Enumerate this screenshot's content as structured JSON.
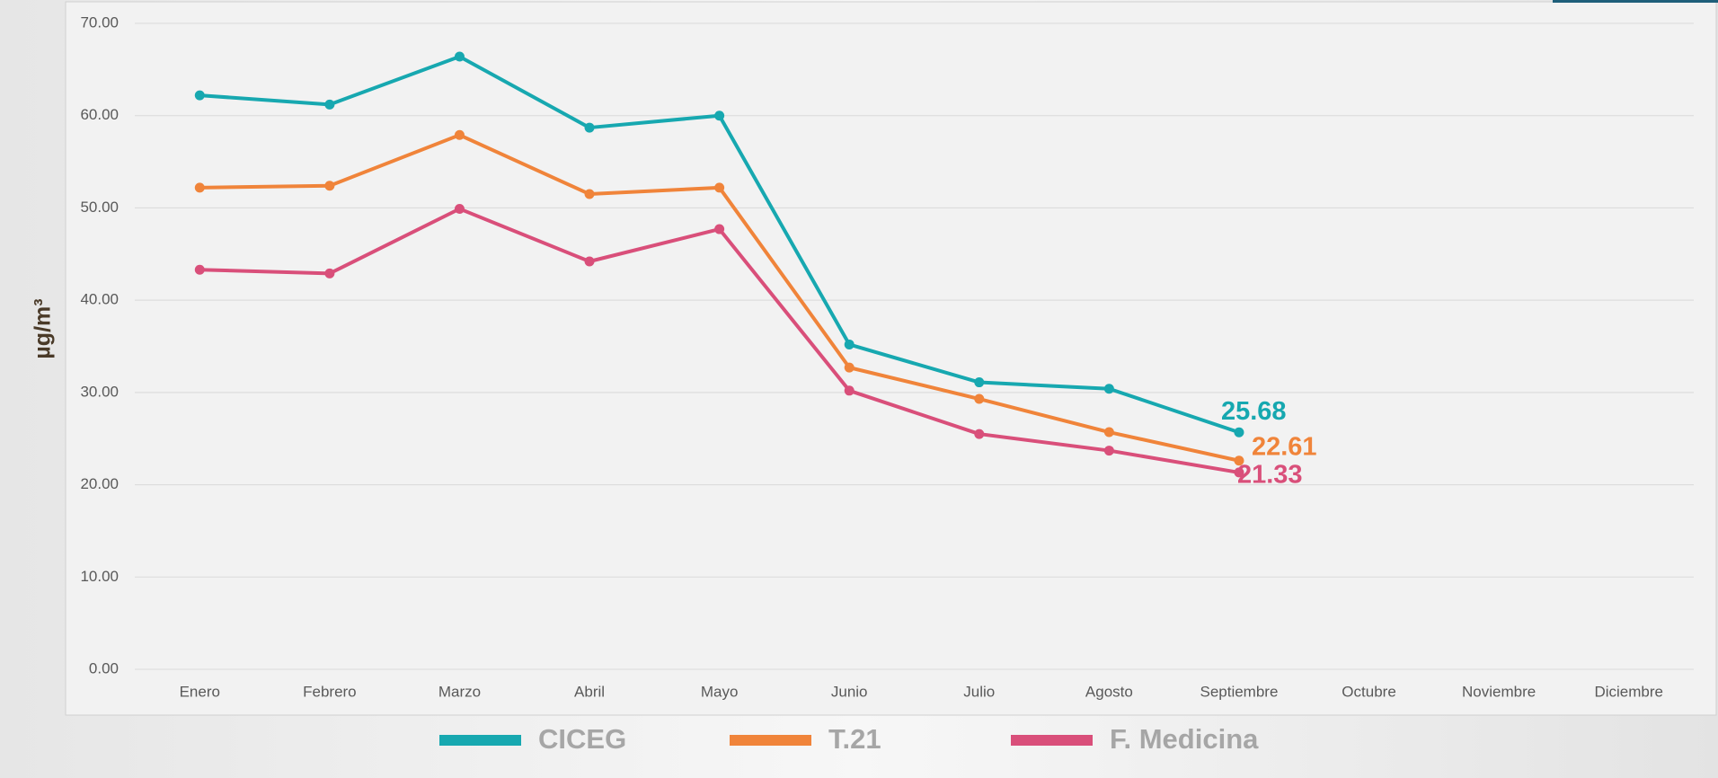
{
  "chart_data": {
    "type": "line",
    "y_label": "µg/m³",
    "categories": [
      "Enero",
      "Febrero",
      "Marzo",
      "Abril",
      "Mayo",
      "Junio",
      "Julio",
      "Agosto",
      "Septiembre",
      "Octubre",
      "Noviembre",
      "Diciembre"
    ],
    "series": [
      {
        "name": "CICEG",
        "color": "#17a8b0",
        "values": [
          62.2,
          61.2,
          66.4,
          58.7,
          60.0,
          35.2,
          31.1,
          30.4,
          25.68,
          null,
          null,
          null
        ]
      },
      {
        "name": "T.21",
        "color": "#f0843a",
        "values": [
          52.2,
          52.4,
          57.9,
          51.5,
          52.2,
          32.7,
          29.3,
          25.7,
          22.61,
          null,
          null,
          null
        ]
      },
      {
        "name": "F. Medicina",
        "color": "#d94f7a",
        "values": [
          43.3,
          42.9,
          49.9,
          44.2,
          47.7,
          30.2,
          25.5,
          23.7,
          21.33,
          null,
          null,
          null
        ]
      }
    ],
    "ylim": [
      0,
      70
    ],
    "yticks": [
      {
        "value": 0,
        "label": "0.00"
      },
      {
        "value": 10,
        "label": "10.00"
      },
      {
        "value": 20,
        "label": "20.00"
      },
      {
        "value": 30,
        "label": "30.00"
      },
      {
        "value": 40,
        "label": "40.00"
      },
      {
        "value": 50,
        "label": "50.00"
      },
      {
        "value": 60,
        "label": "60.00"
      },
      {
        "value": 70,
        "label": "70.00"
      }
    ],
    "grid": true,
    "legend": "bottom",
    "label_last_point": true
  }
}
